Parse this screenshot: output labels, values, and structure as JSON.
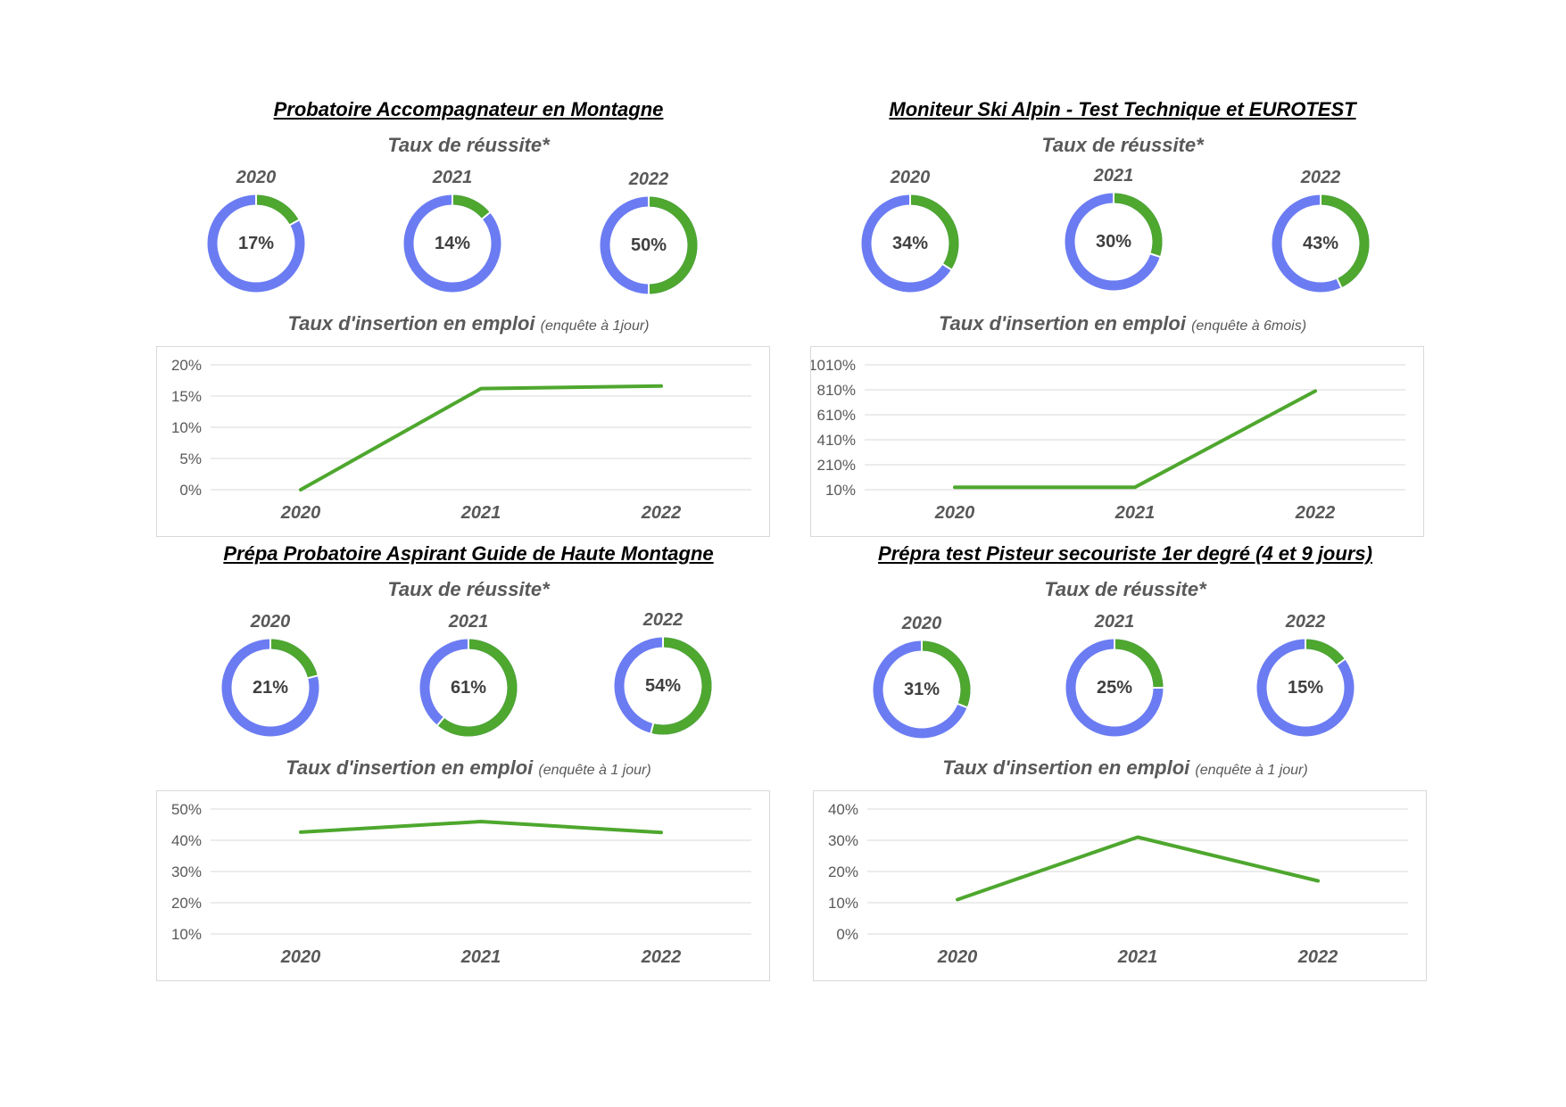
{
  "panels": [
    {
      "title": "Probatoire Accompagnateur en Montagne",
      "subtitle": "Taux de réussite*",
      "donuts": [
        {
          "year": "2020",
          "label": "17%",
          "value": 0.17
        },
        {
          "year": "2021",
          "label": "14%",
          "value": 0.14
        },
        {
          "year": "2022",
          "label": "50%",
          "value": 0.5
        }
      ],
      "insertion_title": "Taux d'insertion en emploi",
      "insertion_note": "(enquête à 1jour)"
    },
    {
      "title": "Moniteur Ski Alpin - Test Technique et EUROTEST",
      "subtitle": "Taux de réussite*",
      "donuts": [
        {
          "year": "2020",
          "label": "34%",
          "value": 0.34
        },
        {
          "year": "2021",
          "label": "30%",
          "value": 0.3
        },
        {
          "year": "2022",
          "label": "43%",
          "value": 0.43
        }
      ],
      "insertion_title": "Taux d'insertion en emploi",
      "insertion_note": "(enquête à 6mois)"
    },
    {
      "title": "Prépa Probatoire Aspirant Guide de Haute Montagne",
      "subtitle": "Taux de réussite*",
      "donuts": [
        {
          "year": "2020",
          "label": "21%",
          "value": 0.21
        },
        {
          "year": "2021",
          "label": "61%",
          "value": 0.61
        },
        {
          "year": "2022",
          "label": "54%",
          "value": 0.54
        }
      ],
      "insertion_title": "Taux d'insertion en emploi",
      "insertion_note": "(enquête à 1 jour)"
    },
    {
      "title": "Prépra test Pisteur secouriste 1er degré (4 et 9 jours)",
      "subtitle": "Taux de réussite*",
      "donuts": [
        {
          "year": "2020",
          "label": "31%",
          "value": 0.31
        },
        {
          "year": "2021",
          "label": "25%",
          "value": 0.25
        },
        {
          "year": "2022",
          "label": "15%",
          "value": 0.15
        }
      ],
      "insertion_title": "Taux d'insertion en emploi",
      "insertion_note": "(enquête à 1 jour)"
    }
  ],
  "colors": {
    "success": "#4ea72e",
    "remainder": "#6b7cf2",
    "grid": "#d9d9d9"
  },
  "chart_data": [
    {
      "type": "line",
      "categories": [
        "2020",
        "2021",
        "2022"
      ],
      "values": [
        0,
        16.2,
        16.6
      ],
      "unit": "%",
      "yticks": [
        "0%",
        "5%",
        "10%",
        "15%",
        "20%"
      ],
      "ylim": [
        0,
        20
      ]
    },
    {
      "type": "line",
      "categories": [
        "2020",
        "2021",
        "2022"
      ],
      "values": [
        30,
        30,
        800
      ],
      "unit": "%",
      "yticks": [
        "10%",
        "210%",
        "410%",
        "610%",
        "810%",
        "1010%"
      ],
      "ylim": [
        10,
        1010
      ]
    },
    {
      "type": "line",
      "categories": [
        "2020",
        "2021",
        "2022"
      ],
      "values": [
        42.6,
        46,
        42.5
      ],
      "unit": "%",
      "yticks": [
        "10%",
        "20%",
        "30%",
        "40%",
        "50%"
      ],
      "ylim": [
        10,
        50
      ]
    },
    {
      "type": "line",
      "categories": [
        "2020",
        "2021",
        "2022"
      ],
      "values": [
        11,
        31,
        17
      ],
      "unit": "%",
      "yticks": [
        "0%",
        "10%",
        "20%",
        "30%",
        "40%"
      ],
      "ylim": [
        0,
        40
      ]
    }
  ]
}
